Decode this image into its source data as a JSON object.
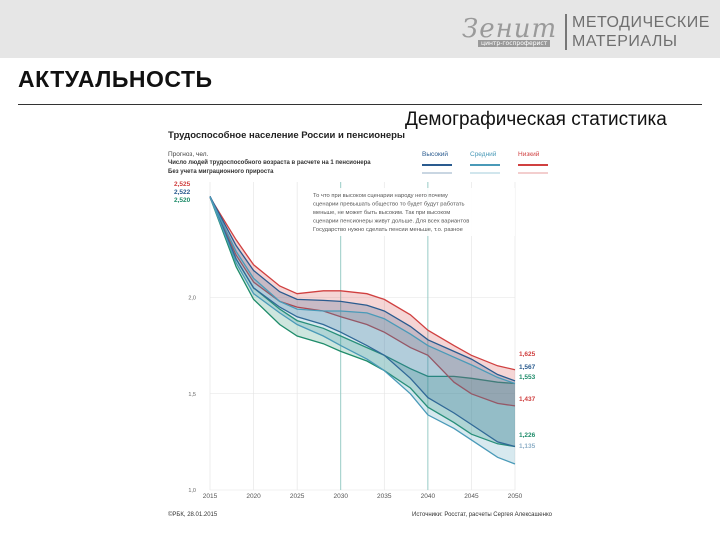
{
  "logo": {
    "script": "Зенит",
    "sub": "цинтр-госпроферист",
    "line1": "МЕТОДИЧЕСКИЕ",
    "line2": "МАТЕРИАЛЫ"
  },
  "page": {
    "title": "АКТУАЛЬНОСТЬ",
    "subtitle": "Демографическая статистика"
  },
  "chart_data": {
    "type": "area",
    "title": "Трудоспособное население России и пенсионеры",
    "forecast_label": "Прогноз, чел.",
    "ylabel": "Число людей трудоспособного возраста в расчете на 1 пенсионера",
    "ylabel_2": "Без учета миграционного прироста",
    "legend_position": "top-right",
    "x": [
      2015,
      2018,
      2020,
      2023,
      2025,
      2028,
      2030,
      2033,
      2035,
      2038,
      2040,
      2043,
      2045,
      2048,
      2050
    ],
    "x_ticks": [
      "2015",
      "2020",
      "2025",
      "2030",
      "2035",
      "2040",
      "2045",
      "2050"
    ],
    "ylim": [
      1.0,
      2.6
    ],
    "y_ticks": [
      "1,0",
      "1,5",
      "2,0"
    ],
    "y_tick_values": [
      1.0,
      1.5,
      2.0
    ],
    "grid": true,
    "annotation": "То что при высоком сценарии народу него почему сценарии превышать общество то будет будут работать меньше, не может быть высоким. Так при высоком сценарии пенсионеры живут дольше. Для всех вариантов Государство нужно сделать пенсии меньше, т.о. разное будут",
    "start_labels": [
      "2,525",
      "2,522",
      "2,520"
    ],
    "end_labels": [
      "1,625",
      "1,567",
      "1,553",
      "1,437",
      "1,226",
      "1,135"
    ],
    "series": [
      {
        "name": "Высокий",
        "color": "#2a5b8f",
        "upper": [
          2.525,
          2.27,
          2.14,
          2.03,
          1.99,
          1.985,
          1.98,
          1.96,
          1.93,
          1.85,
          1.78,
          1.72,
          1.68,
          1.6,
          1.567
        ],
        "lower": [
          2.525,
          2.2,
          2.05,
          1.95,
          1.9,
          1.86,
          1.82,
          1.75,
          1.7,
          1.58,
          1.48,
          1.4,
          1.34,
          1.25,
          1.226
        ]
      },
      {
        "name": "Средний",
        "color": "#4a9ab8",
        "upper": [
          2.522,
          2.24,
          2.1,
          1.98,
          1.94,
          1.93,
          1.93,
          1.92,
          1.89,
          1.81,
          1.75,
          1.69,
          1.65,
          1.585,
          1.553
        ],
        "lower": [
          2.522,
          2.18,
          2.02,
          1.92,
          1.86,
          1.8,
          1.75,
          1.68,
          1.62,
          1.5,
          1.39,
          1.32,
          1.26,
          1.17,
          1.135
        ]
      },
      {
        "name": "Низкий",
        "color": "#d04040",
        "upper": [
          2.52,
          2.3,
          2.17,
          2.06,
          2.02,
          2.035,
          2.035,
          2.02,
          1.99,
          1.91,
          1.83,
          1.75,
          1.7,
          1.645,
          1.625
        ],
        "lower": [
          2.52,
          2.22,
          2.08,
          1.98,
          1.95,
          1.93,
          1.9,
          1.86,
          1.82,
          1.74,
          1.7,
          1.56,
          1.5,
          1.45,
          1.437
        ]
      },
      {
        "name": "",
        "color": "#1f8c6a",
        "upper": [
          2.522,
          2.2,
          2.05,
          1.94,
          1.88,
          1.84,
          1.8,
          1.74,
          1.7,
          1.63,
          1.59,
          1.59,
          1.58,
          1.56,
          1.553
        ],
        "lower": [
          2.522,
          2.16,
          1.99,
          1.86,
          1.8,
          1.76,
          1.72,
          1.67,
          1.62,
          1.53,
          1.43,
          1.35,
          1.29,
          1.24,
          1.226
        ]
      }
    ],
    "footer_left": "©РБК, 28.01.2015",
    "footer_right": "Источники: Росстат, расчеты Сергея Алексашенко"
  }
}
